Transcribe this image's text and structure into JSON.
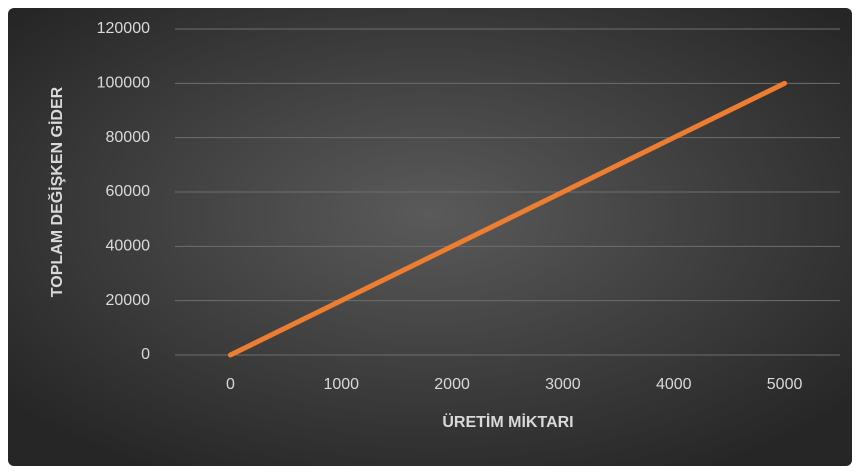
{
  "chart_data": {
    "type": "line",
    "xlabel": "ÜRETİM MİKTARI",
    "ylabel": "TOPLAM DEĞİŞKEN GİDER",
    "categories": [
      0,
      1000,
      2000,
      3000,
      4000,
      5000
    ],
    "series": [
      {
        "name": "TOPLAM DEĞİŞKEN GİDER",
        "color": "#ED7D31",
        "values": [
          0,
          20000,
          40000,
          60000,
          80000,
          100000
        ]
      }
    ],
    "ylim": [
      0,
      120000
    ],
    "yticks": [
      0,
      20000,
      40000,
      60000,
      80000,
      100000,
      120000
    ],
    "grid": true
  }
}
